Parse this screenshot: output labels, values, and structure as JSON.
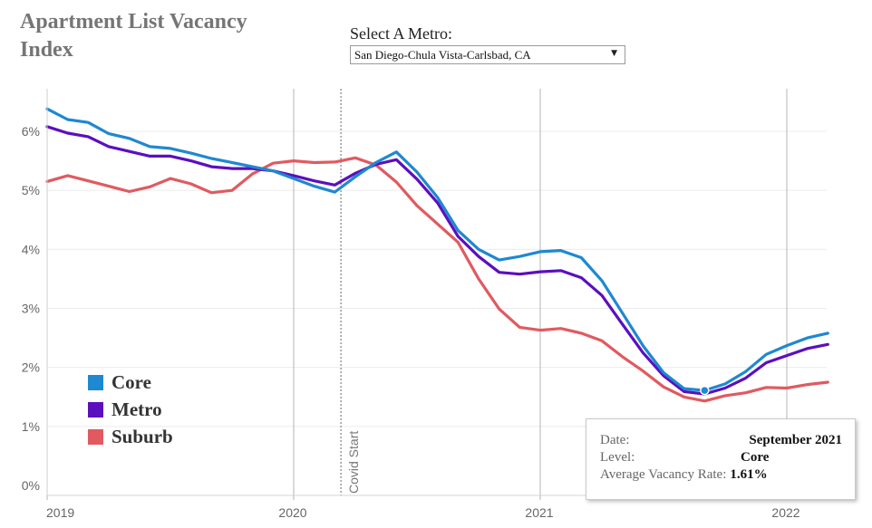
{
  "title": "Apartment List Vacancy Index",
  "metro_selector": {
    "label": "Select A Metro:",
    "value": "San Diego-Chula Vista-Carlsbad, CA"
  },
  "legend": [
    {
      "name": "Core",
      "color": "#1f88d0"
    },
    {
      "name": "Metro",
      "color": "#5b0fbf"
    },
    {
      "name": "Suburb",
      "color": "#e05a60"
    }
  ],
  "annotation": "Covid Start",
  "tooltip": {
    "date_label": "Date:",
    "date_value": "September 2021",
    "level_label": "Level:",
    "level_value": "Core",
    "rate_label": "Average Vacancy Rate:",
    "rate_value": "1.61%"
  },
  "chart_data": {
    "type": "line",
    "x_unit": "month index from January 2019",
    "x": [
      0,
      1,
      2,
      3,
      4,
      5,
      6,
      7,
      8,
      9,
      10,
      11,
      12,
      13,
      14,
      15,
      16,
      17,
      18,
      19,
      20,
      21,
      22,
      23,
      24,
      25,
      26,
      27,
      28,
      29,
      30,
      31,
      32,
      33,
      34,
      35,
      36,
      37,
      38
    ],
    "xlim": [
      0,
      38
    ],
    "x_ticks": [
      {
        "label": "2019",
        "x": 0
      },
      {
        "label": "2020",
        "x": 12
      },
      {
        "label": "2021",
        "x": 24
      },
      {
        "label": "2022",
        "x": 36
      }
    ],
    "ylim": [
      0,
      6.6
    ],
    "y_ticks": [
      "0%",
      "1%",
      "2%",
      "3%",
      "4%",
      "5%",
      "6%"
    ],
    "y_tick_values": [
      0,
      1,
      2,
      3,
      4,
      5,
      6
    ],
    "annotation_x": 14.3,
    "highlight": {
      "series": "Core",
      "x": 32,
      "y": 1.61
    },
    "series": [
      {
        "name": "Core",
        "color": "#1f88d0",
        "values": [
          6.38,
          6.2,
          6.15,
          5.96,
          5.88,
          5.74,
          5.71,
          5.63,
          5.54,
          5.47,
          5.4,
          5.33,
          5.2,
          5.07,
          4.97,
          5.23,
          5.47,
          5.65,
          5.31,
          4.88,
          4.32,
          4.0,
          3.82,
          3.88,
          3.96,
          3.98,
          3.86,
          3.47,
          2.92,
          2.37,
          1.91,
          1.64,
          1.61,
          1.72,
          1.93,
          2.22,
          2.37,
          2.5,
          2.58
        ]
      },
      {
        "name": "Metro",
        "color": "#5b0fbf",
        "values": [
          6.08,
          5.97,
          5.91,
          5.74,
          5.66,
          5.58,
          5.58,
          5.5,
          5.4,
          5.37,
          5.37,
          5.33,
          5.25,
          5.16,
          5.09,
          5.29,
          5.44,
          5.52,
          5.19,
          4.79,
          4.22,
          3.88,
          3.61,
          3.58,
          3.62,
          3.64,
          3.52,
          3.22,
          2.73,
          2.25,
          1.86,
          1.59,
          1.55,
          1.65,
          1.82,
          2.08,
          2.2,
          2.32,
          2.39
        ]
      },
      {
        "name": "Suburb",
        "color": "#e05a60",
        "values": [
          5.15,
          5.25,
          5.16,
          5.07,
          4.98,
          5.06,
          5.2,
          5.11,
          4.96,
          5.0,
          5.28,
          5.46,
          5.5,
          5.47,
          5.48,
          5.55,
          5.43,
          5.14,
          4.74,
          4.43,
          4.12,
          3.5,
          2.99,
          2.68,
          2.63,
          2.66,
          2.58,
          2.45,
          2.18,
          1.94,
          1.67,
          1.5,
          1.43,
          1.52,
          1.57,
          1.66,
          1.65,
          1.71,
          1.75
        ]
      }
    ]
  }
}
